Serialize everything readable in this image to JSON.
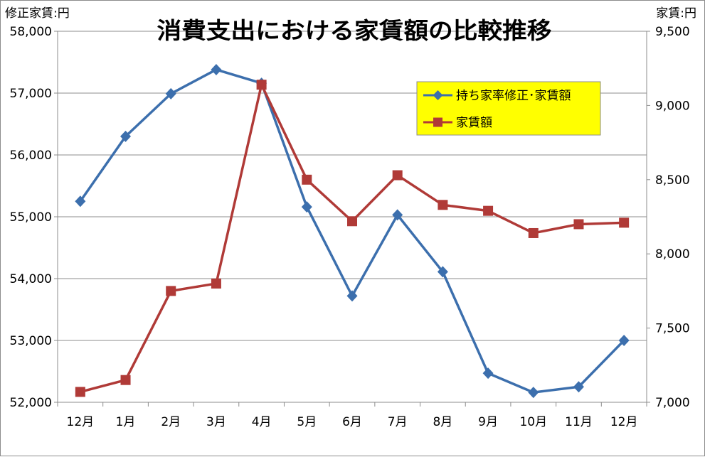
{
  "chart_data": {
    "type": "line",
    "title": "消費支出における家賃額の比較推移",
    "categories": [
      "12月",
      "1月",
      "2月",
      "3月",
      "4月",
      "5月",
      "6月",
      "7月",
      "8月",
      "9月",
      "10月",
      "11月",
      "12月"
    ],
    "y_left": {
      "label": "修正家賃:円",
      "ylim": [
        52000,
        58000
      ],
      "ticks": [
        52000,
        53000,
        54000,
        55000,
        56000,
        57000,
        58000
      ],
      "tick_labels": [
        "52,000",
        "53,000",
        "54,000",
        "55,000",
        "56,000",
        "57,000",
        "58,000"
      ]
    },
    "y_right": {
      "label": "家賃:円",
      "ylim": [
        7000,
        9500
      ],
      "ticks": [
        7000,
        7500,
        8000,
        8500,
        9000,
        9500
      ],
      "tick_labels": [
        "7,000",
        "7,500",
        "8,000",
        "8,500",
        "9,000",
        "9,500"
      ]
    },
    "series": [
      {
        "name": "持ち家率修正･家賃額",
        "axis": "left",
        "color": "#3C6FAD",
        "marker": "diamond",
        "values": [
          55250,
          56300,
          56990,
          57380,
          57160,
          55160,
          53720,
          55030,
          54110,
          52470,
          52160,
          52250,
          53000
        ]
      },
      {
        "name": "家賃額",
        "axis": "right",
        "color": "#B03A37",
        "marker": "square",
        "values": [
          7070,
          7150,
          7750,
          7800,
          9140,
          8500,
          8220,
          8530,
          8330,
          8290,
          8140,
          8200,
          8210
        ]
      }
    ],
    "grid": true,
    "legend_position": "top-right",
    "legend_background": "#FFFF00"
  }
}
